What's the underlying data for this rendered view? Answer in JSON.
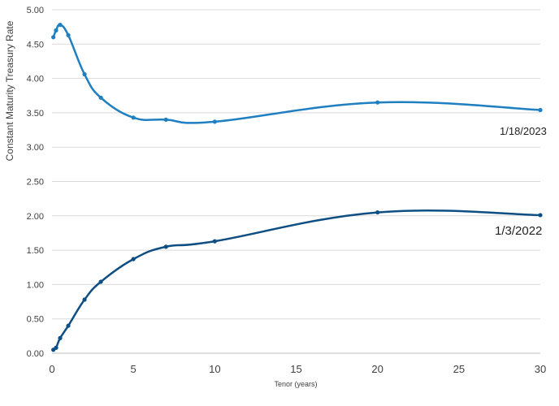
{
  "chart_data": {
    "type": "line",
    "title": "",
    "xlabel": "Tenor (years)",
    "ylabel": "Constant Maturity Treasury Rate",
    "xlim": [
      0,
      30
    ],
    "ylim": [
      0,
      5
    ],
    "x_ticks": [
      "0",
      "5",
      "10",
      "15",
      "20",
      "25",
      "30"
    ],
    "y_ticks": [
      "0.00",
      "0.50",
      "1.00",
      "1.50",
      "2.00",
      "2.50",
      "3.00",
      "3.50",
      "4.00",
      "4.50",
      "5.00"
    ],
    "grid": "horizontal",
    "legend": "none",
    "series": [
      {
        "name": "1/18/2023",
        "color": "#1f7fc0",
        "x": [
          0.083,
          0.25,
          0.5,
          1,
          2,
          3,
          5,
          7,
          10,
          20,
          30
        ],
        "y": [
          4.6,
          4.7,
          4.78,
          4.63,
          4.06,
          3.72,
          3.43,
          3.4,
          3.37,
          3.65,
          3.54
        ]
      },
      {
        "name": "1/3/2022",
        "color": "#0e4e82",
        "x": [
          0.083,
          0.25,
          0.5,
          1,
          2,
          3,
          5,
          7,
          10,
          20,
          30
        ],
        "y": [
          0.05,
          0.08,
          0.22,
          0.4,
          0.78,
          1.04,
          1.37,
          1.55,
          1.63,
          2.05,
          2.01
        ]
      }
    ]
  }
}
